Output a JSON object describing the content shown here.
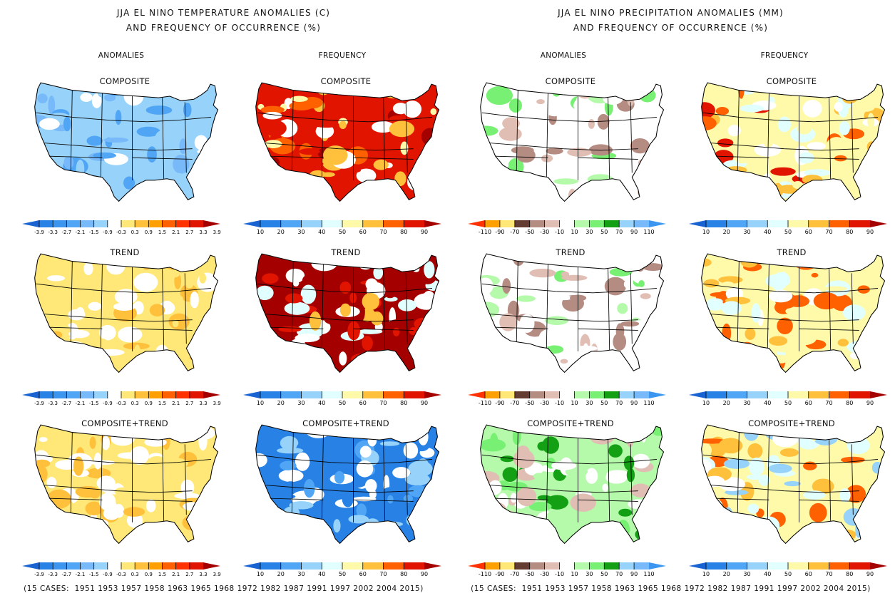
{
  "figure": {
    "left_title": [
      "JJA EL NINO TEMPERATURE ANOMALIES (C)",
      "AND FREQUENCY OF OCCURRENCE (%)"
    ],
    "right_title": [
      "JJA EL NINO PRECIPITATION ANOMALIES (MM)",
      "AND FREQUENCY OF OCCURRENCE (%)"
    ],
    "column_titles": [
      "ANOMALIES",
      "FREQUENCY",
      "ANOMALIES",
      "FREQUENCY"
    ],
    "row_labels": [
      "COMPOSITE",
      "TREND",
      "COMPOSITE+TREND"
    ],
    "cases_text": "(15 CASES:  1951 1953 1957 1958 1963 1965 1968 1972 1982 1987 1991 1997 2002 2004 2015)",
    "case_count": 15,
    "case_years": [
      1951,
      1953,
      1957,
      1958,
      1963,
      1965,
      1968,
      1972,
      1982,
      1987,
      1991,
      1997,
      2002,
      2004,
      2015
    ]
  },
  "colorbars": {
    "temp_anom": {
      "labels": [
        "-3.9",
        "-3.3",
        "-2.7",
        "-2.1",
        "-1.5",
        "-0.9",
        "-0.3",
        "0.3",
        "0.9",
        "1.5",
        "2.1",
        "2.7",
        "3.3",
        "3.9"
      ],
      "colors": [
        "#1964d2",
        "#2882e6",
        "#3c96f0",
        "#50a5f5",
        "#78b9fa",
        "#96d2fa",
        "#ffffff",
        "#ffe878",
        "#ffc03c",
        "#ffa000",
        "#ff6000",
        "#ff3200",
        "#e11400",
        "#a50000"
      ]
    },
    "freq": {
      "labels": [
        "10",
        "20",
        "30",
        "40",
        "50",
        "60",
        "70",
        "80",
        "90"
      ],
      "colors": [
        "#1964d2",
        "#2882e6",
        "#50a5f5",
        "#96d2fa",
        "#e1ffff",
        "#fffaaa",
        "#ffc03c",
        "#ff6000",
        "#e11400",
        "#a50000"
      ]
    },
    "precip_anom": {
      "labels": [
        "-110",
        "-90",
        "-70",
        "-50",
        "-30",
        "-10",
        "10",
        "30",
        "50",
        "70",
        "90",
        "110"
      ],
      "colors": [
        "#ff3200",
        "#ffa000",
        "#ffe878",
        "#643c32",
        "#b48c82",
        "#e1beb4",
        "#ffffff",
        "#b4faaa",
        "#78f073",
        "#14a014",
        "#96d2fa",
        "#78b9fa",
        "#3c96f0"
      ]
    }
  },
  "panels": [
    {
      "row": "COMPOSITE",
      "variable": "temperature",
      "kind": "anomalies",
      "dominant": "light blue (-0.3 to -0.9 C) across most of US; darker blue in SW/Mexico"
    },
    {
      "row": "COMPOSITE",
      "variable": "temperature",
      "kind": "frequency",
      "dominant": "high (70-90%) in West and Northeast; lower in central Plains"
    },
    {
      "row": "COMPOSITE",
      "variable": "precipitation",
      "kind": "anomalies",
      "dominant": "mixed: brown (dry) Northeast/Plains, green (wet) Southeast/upper Midwest"
    },
    {
      "row": "COMPOSITE",
      "variable": "precipitation",
      "kind": "frequency",
      "dominant": "scattered 50-80%, higher in Great Lakes and Northeast"
    },
    {
      "row": "TREND",
      "variable": "temperature",
      "kind": "anomalies",
      "dominant": "warm (0.3-1.5 C) in West and North; near zero in Southeast"
    },
    {
      "row": "TREND",
      "variable": "temperature",
      "kind": "frequency",
      "dominant": "very high (80-90%+) in Great Basin/West"
    },
    {
      "row": "TREND",
      "variable": "precipitation",
      "kind": "anomalies",
      "dominant": "green (wet) East, brown (dry) northern Plains/West"
    },
    {
      "row": "TREND",
      "variable": "precipitation",
      "kind": "frequency",
      "dominant": "scattered 50-80%"
    },
    {
      "row": "COMPOSITE+TREND",
      "variable": "temperature",
      "kind": "anomalies",
      "dominant": "warm in Pacific NW/West; neutral elsewhere"
    },
    {
      "row": "COMPOSITE+TREND",
      "variable": "temperature",
      "kind": "frequency",
      "dominant": "low (10-30%) in West; neutral East"
    },
    {
      "row": "COMPOSITE+TREND",
      "variable": "precipitation",
      "kind": "anomalies",
      "dominant": "green (wet) across East and South"
    },
    {
      "row": "COMPOSITE+TREND",
      "variable": "precipitation",
      "kind": "frequency",
      "dominant": "mixed 40-70%, some blue in South-central"
    }
  ]
}
